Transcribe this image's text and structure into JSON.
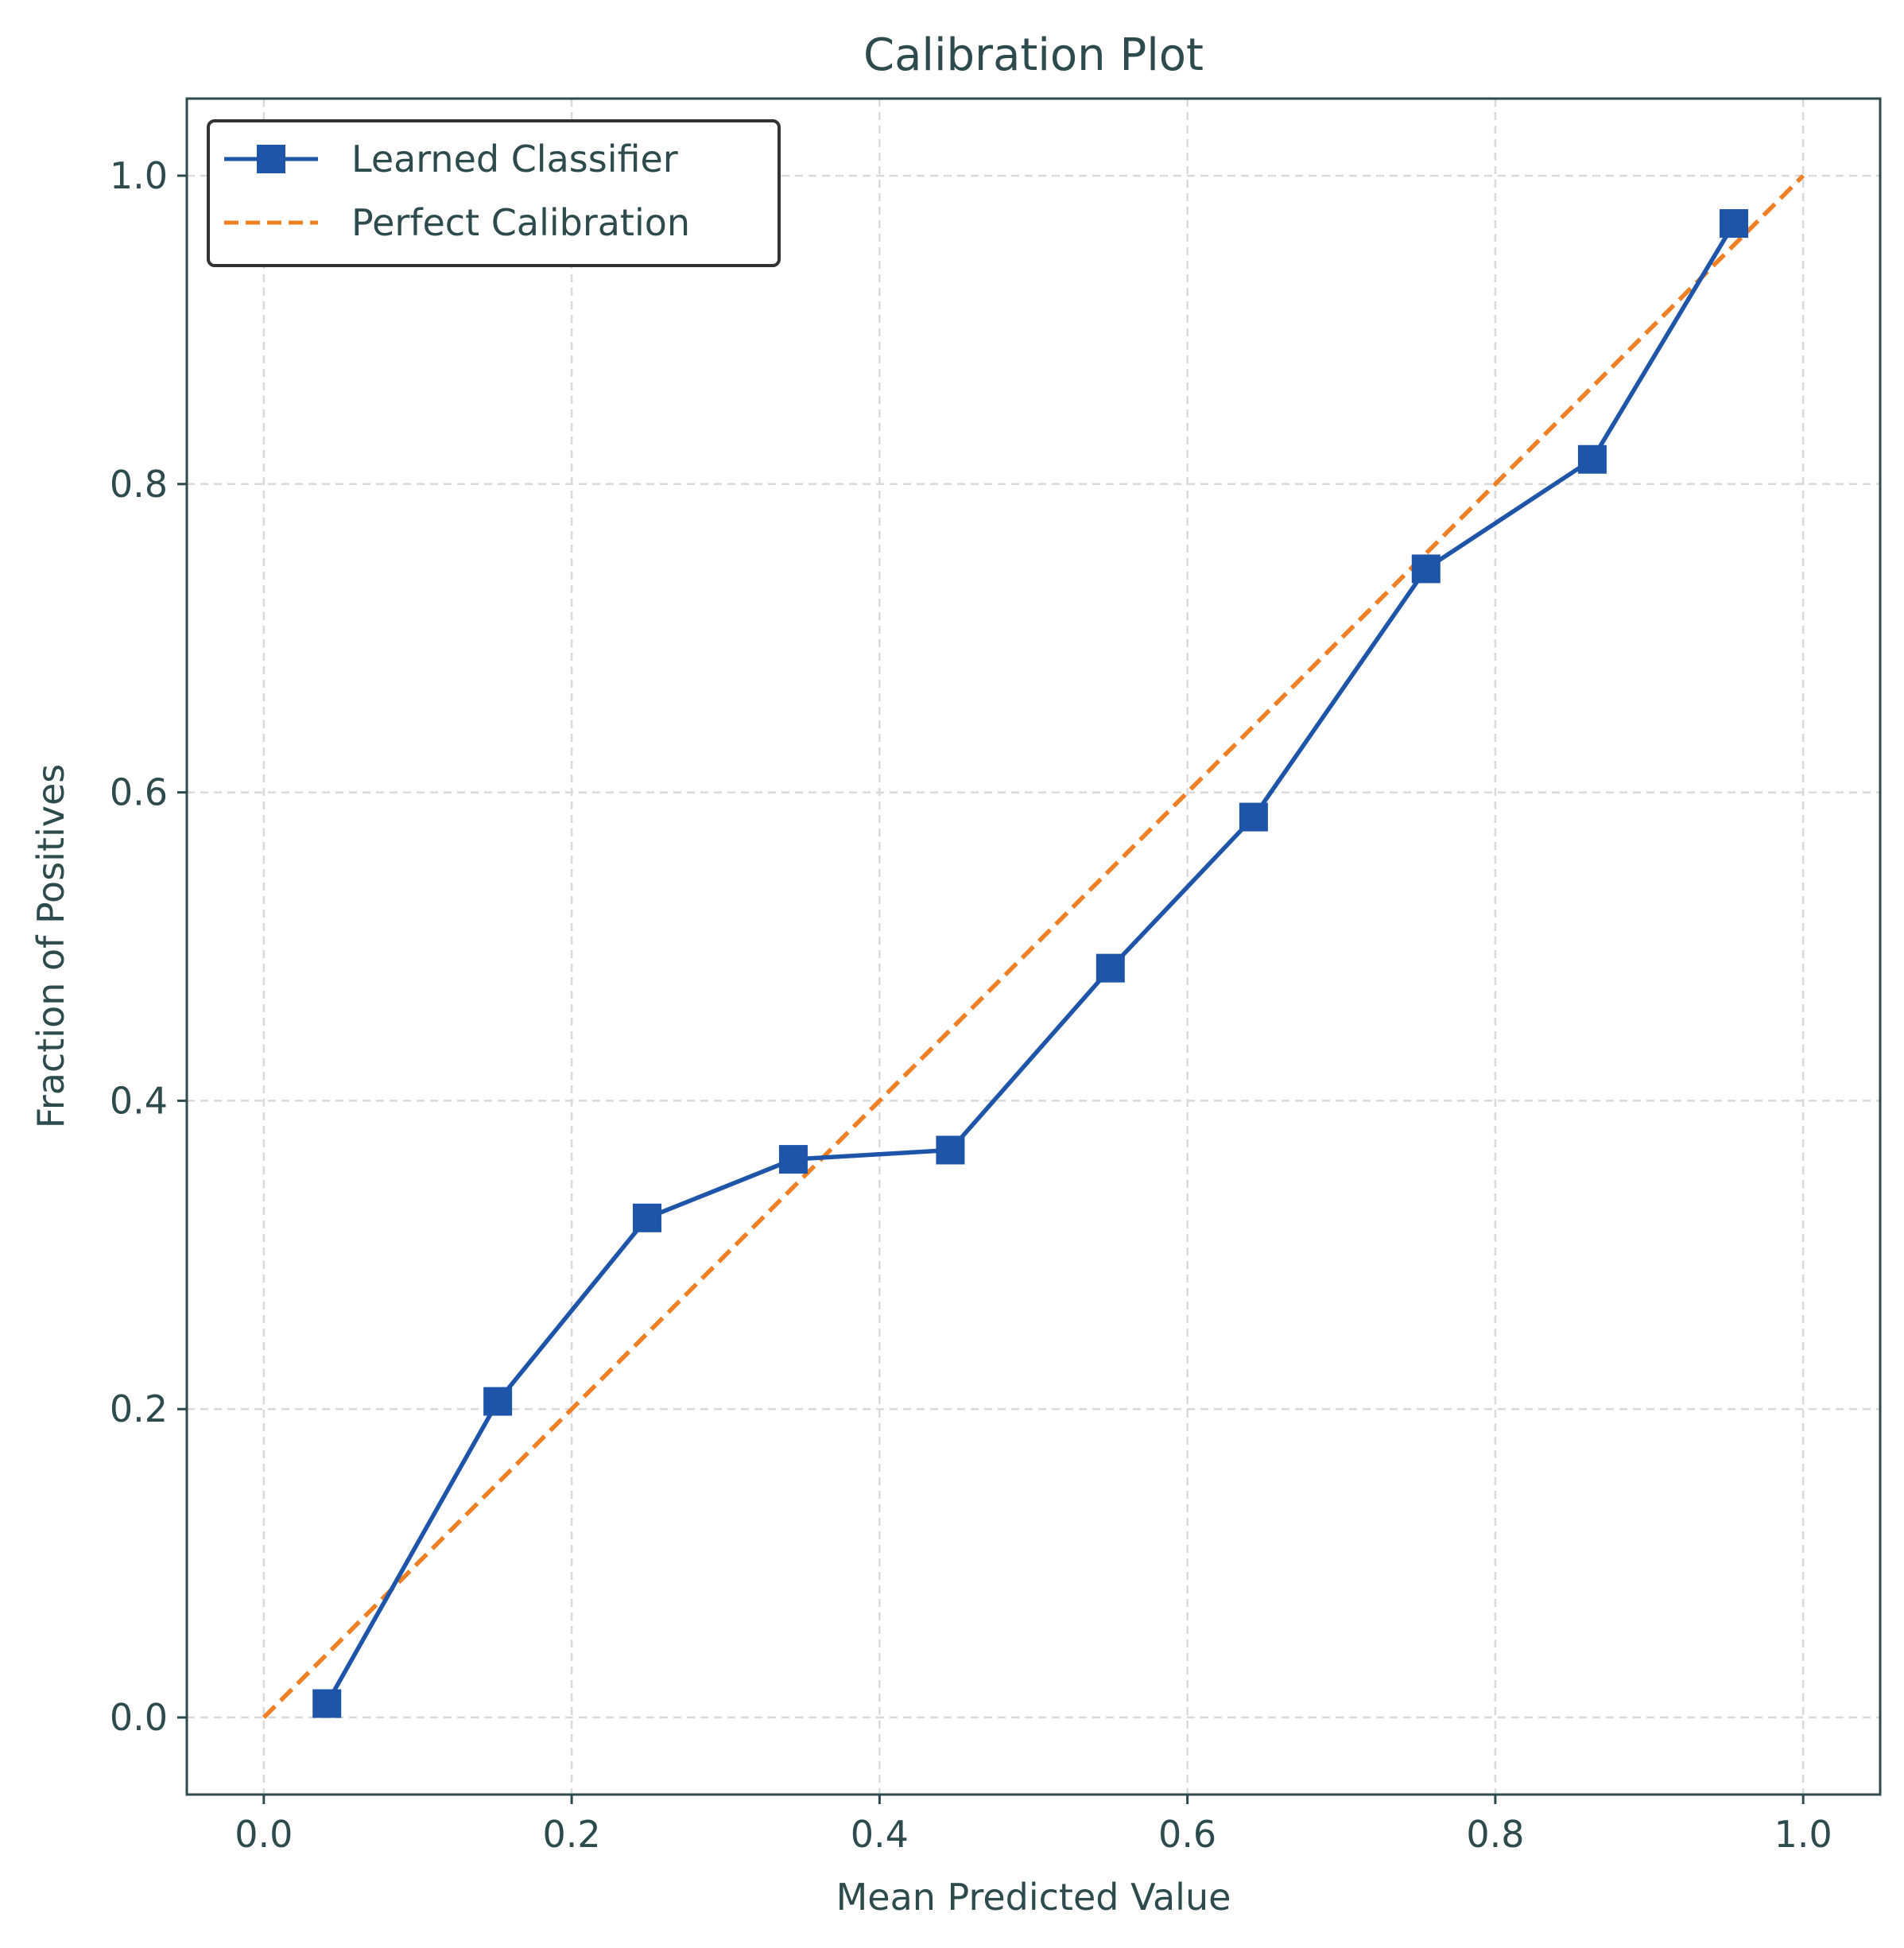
{
  "chart_data": {
    "type": "line",
    "title": "Calibration Plot",
    "xlabel": "Mean Predicted Value",
    "ylabel": "Fraction of Positives",
    "xlim": [
      -0.05,
      1.05
    ],
    "ylim": [
      -0.05,
      1.05
    ],
    "xticks": [
      0.0,
      0.2,
      0.4,
      0.6,
      0.8,
      1.0
    ],
    "yticks": [
      0.0,
      0.2,
      0.4,
      0.6,
      0.8,
      1.0
    ],
    "tick_labels_x": [
      "0.0",
      "0.2",
      "0.4",
      "0.6",
      "0.8",
      "1.0"
    ],
    "tick_labels_y": [
      "0.0",
      "0.2",
      "0.4",
      "0.6",
      "0.8",
      "1.0"
    ],
    "grid": true,
    "legend_position": "top-left",
    "series": [
      {
        "name": "Learned Classifier",
        "style": "solid line with square markers",
        "color": "#1f55a8",
        "x": [
          0.041,
          0.152,
          0.249,
          0.344,
          0.446,
          0.55,
          0.643,
          0.755,
          0.863,
          0.955
        ],
        "y": [
          0.009,
          0.205,
          0.324,
          0.362,
          0.368,
          0.486,
          0.584,
          0.745,
          0.816,
          0.969
        ]
      },
      {
        "name": "Perfect Calibration",
        "style": "dashed line",
        "color": "#f08026",
        "x": [
          0.0,
          1.0
        ],
        "y": [
          0.0,
          1.0
        ]
      }
    ],
    "colors": {
      "axis": "#2d4a4c",
      "grid": "#d9d9d9",
      "legend_border": "#333333"
    }
  }
}
